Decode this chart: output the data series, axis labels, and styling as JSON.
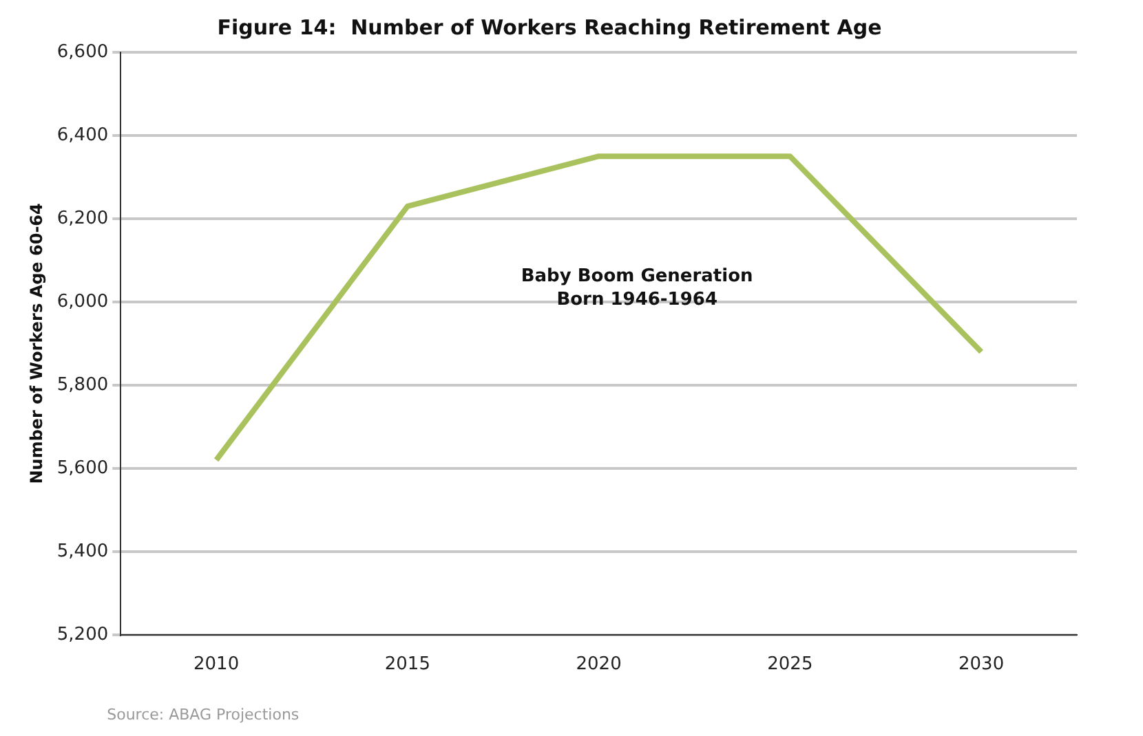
{
  "chart_data": {
    "type": "line",
    "title": "Figure 14:  Number of Workers Reaching Retirement Age",
    "ylabel": "Number of Workers Age 60-64",
    "categories": [
      "2010",
      "2015",
      "2020",
      "2025",
      "2030"
    ],
    "series": [
      {
        "color": "#a9c25d",
        "values": [
          5620,
          6230,
          6350,
          6350,
          5880
        ]
      }
    ],
    "ylim": [
      5200,
      6600
    ],
    "yticks": [
      {
        "value": 5200,
        "label": "5,200"
      },
      {
        "value": 5400,
        "label": "5,400"
      },
      {
        "value": 5600,
        "label": "5,600"
      },
      {
        "value": 5800,
        "label": "5,800"
      },
      {
        "value": 6000,
        "label": "6,000"
      },
      {
        "value": 6200,
        "label": "6,200"
      },
      {
        "value": 6400,
        "label": "6,400"
      },
      {
        "value": 6600,
        "label": "6,600"
      }
    ],
    "grid": "y",
    "legend": false,
    "marker": "none",
    "line_style": "solid",
    "annotations": [
      "Baby Boom Generation\nBorn 1946-1964",
      "Source: ABAG Projections"
    ]
  }
}
